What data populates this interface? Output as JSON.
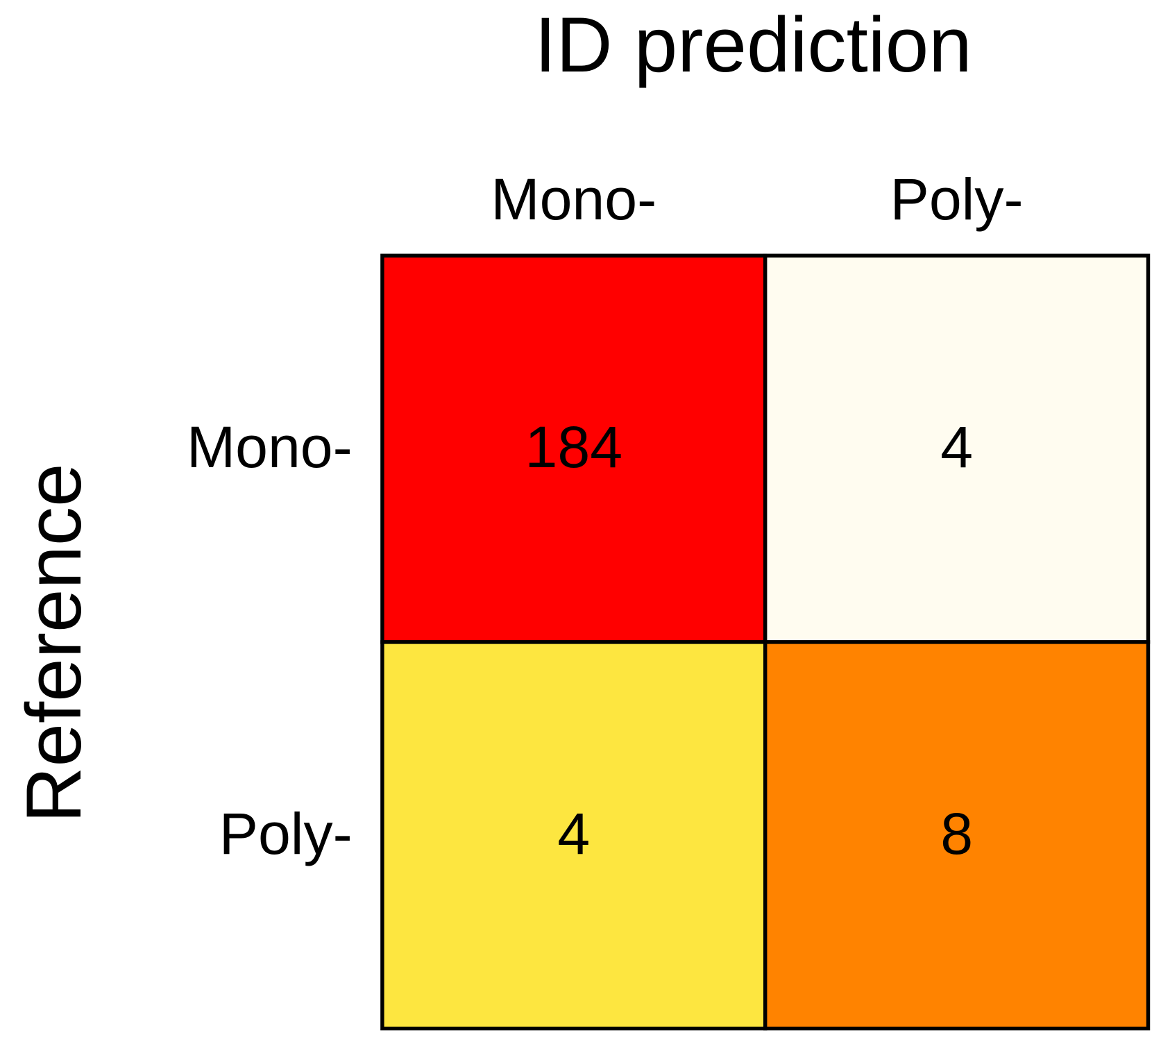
{
  "chart_data": {
    "type": "heatmap",
    "title": "ID prediction",
    "y_label": "Reference",
    "x_categories": [
      "Mono-",
      "Poly-"
    ],
    "y_categories": [
      "Mono-",
      "Poly-"
    ],
    "values": [
      [
        184,
        4
      ],
      [
        4,
        8
      ]
    ],
    "colors": [
      [
        "#ff0000",
        "#fffcf0"
      ],
      [
        "#fde640",
        "#ff8300"
      ]
    ]
  }
}
